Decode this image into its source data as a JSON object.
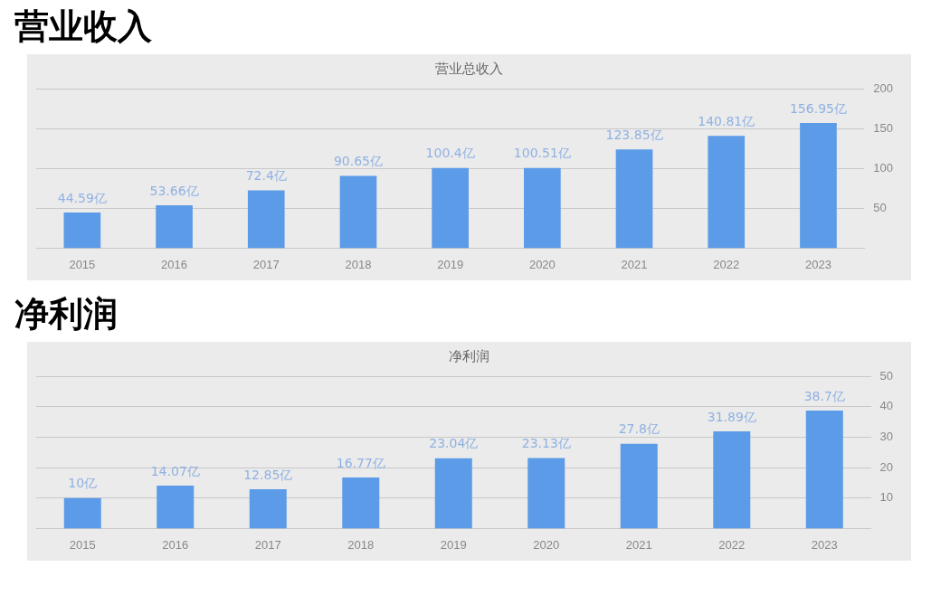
{
  "chart_data": [
    {
      "type": "bar",
      "title": "营业收入",
      "subtitle": "营业总收入",
      "categories": [
        "2015",
        "2016",
        "2017",
        "2018",
        "2019",
        "2020",
        "2021",
        "2022",
        "2023"
      ],
      "values": [
        44.59,
        53.66,
        72.4,
        90.65,
        100.4,
        100.51,
        123.85,
        140.81,
        156.95
      ],
      "value_labels": [
        "44.59亿",
        "53.66亿",
        "72.4亿",
        "90.65亿",
        "100.4亿",
        "100.51亿",
        "123.85亿",
        "140.81亿",
        "156.95亿"
      ],
      "color": "#5b9be8",
      "ylim": [
        0,
        200
      ],
      "yticks": [
        50,
        100,
        150,
        200
      ],
      "grid": "y",
      "legend": false
    },
    {
      "type": "bar",
      "title": "净利润",
      "subtitle": "净利润",
      "categories": [
        "2015",
        "2016",
        "2017",
        "2018",
        "2019",
        "2020",
        "2021",
        "2022",
        "2023"
      ],
      "values": [
        10,
        14.07,
        12.85,
        16.77,
        23.04,
        23.13,
        27.8,
        31.89,
        38.7
      ],
      "value_labels": [
        "10亿",
        "14.07亿",
        "12.85亿",
        "16.77亿",
        "23.04亿",
        "23.13亿",
        "27.8亿",
        "31.89亿",
        "38.7亿"
      ],
      "color": "#5b9be8",
      "ylim": [
        0,
        50
      ],
      "yticks": [
        10,
        20,
        30,
        40,
        50
      ],
      "grid": "y",
      "legend": false
    }
  ]
}
